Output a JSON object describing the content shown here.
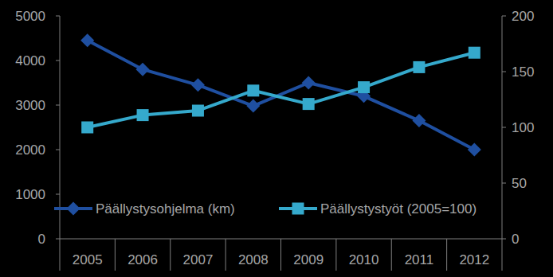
{
  "chart_data": {
    "type": "line",
    "categories": [
      "2005",
      "2006",
      "2007",
      "2008",
      "2009",
      "2010",
      "2011",
      "2012"
    ],
    "series": [
      {
        "name": "Päällystysohjelma (km)",
        "color": "#1f4fa0",
        "marker": "diamond",
        "axis": "y",
        "values": [
          4450,
          3800,
          3450,
          2980,
          3500,
          3200,
          2650,
          2000
        ]
      },
      {
        "name": "Päällystystyöt (2005=100)",
        "color": "#35a9cc",
        "marker": "square",
        "axis": "y2",
        "values": [
          100,
          111,
          115,
          133,
          121,
          136,
          154,
          167
        ]
      }
    ],
    "ylim": [
      0,
      5000
    ],
    "yticks": [
      0,
      1000,
      2000,
      3000,
      4000,
      5000
    ],
    "y2lim": [
      0,
      200
    ],
    "y2ticks": [
      0,
      50,
      100,
      150,
      200
    ],
    "grid": false,
    "legend": "bottom"
  }
}
